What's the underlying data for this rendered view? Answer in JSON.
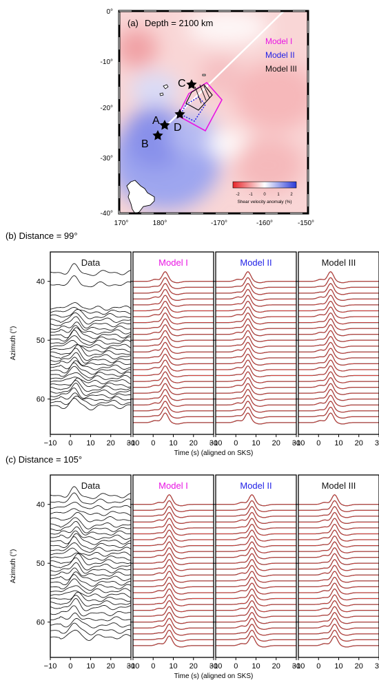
{
  "panel_a": {
    "label": "(a)",
    "title": "Depth = 2100 km",
    "legend": [
      {
        "text": "Model I",
        "color": "#e815e3"
      },
      {
        "text": "Model II",
        "color": "#1f1fe6"
      },
      {
        "text": "Model III",
        "color": "#111111"
      }
    ],
    "x_ticks": [
      "170°",
      "180°",
      "-170°",
      "-160°",
      "-150°"
    ],
    "y_ticks": [
      "0°",
      "-10°",
      "-20°",
      "-30°",
      "-40°"
    ],
    "stations": [
      "A",
      "B",
      "C",
      "D"
    ],
    "colorbar": {
      "ticks": [
        "-2",
        "-1",
        "0",
        "1",
        "2"
      ],
      "label": "Shear velocity anomaly (%)",
      "min_color": "#e8262b",
      "max_color": "#2a3ad8"
    }
  },
  "panel_b": {
    "label": "(b) Distance = 99°"
  },
  "panel_c": {
    "label": "(c) Distance = 105°"
  },
  "common": {
    "ylabel": "Azimuth (°)",
    "xlabel": "Time (s) (aligned on SKS)",
    "x_ticks": [
      "−10",
      "0",
      "10",
      "20",
      "30"
    ],
    "y_ticks": [
      "40",
      "50",
      "60"
    ],
    "titles": [
      {
        "text": "Data",
        "color": "#111111"
      },
      {
        "text": "Model I",
        "color": "#e815e3"
      },
      {
        "text": "Model II",
        "color": "#1f1fe6"
      },
      {
        "text": "Model III",
        "color": "#111111"
      }
    ]
  },
  "chart_data": [
    {
      "type": "line",
      "name": "Distance = 99°",
      "x_range": [
        -10,
        30
      ],
      "y_range": [
        35,
        66
      ],
      "data_azimuths": [
        38.5,
        40.5,
        44.5,
        45.2,
        45.9,
        46.6,
        47.3,
        48.0,
        48.6,
        49.2,
        49.8,
        50.4,
        51.0,
        51.6,
        52.2,
        52.8,
        53.4,
        54.0,
        54.6,
        55.2,
        55.8,
        56.4,
        57.0,
        57.6,
        58.2,
        58.8,
        59.4,
        60.0,
        60.6,
        61.2
      ],
      "synthetic_azimuths": [
        40,
        41,
        42,
        43,
        44,
        45,
        46,
        47,
        48,
        49,
        50,
        51,
        52,
        53,
        54,
        55,
        56,
        57,
        58,
        59,
        60,
        61,
        62,
        63,
        64
      ],
      "peak_time_s": 6
    },
    {
      "type": "line",
      "name": "Distance = 105°",
      "x_range": [
        -10,
        30
      ],
      "y_range": [
        35,
        66
      ],
      "data_azimuths": [
        38.5,
        39.5,
        40.5,
        41.5,
        42.5,
        43.5,
        44.2,
        44.9,
        45.6,
        46.3,
        47.0,
        47.7,
        48.4,
        49.1,
        49.8,
        50.5,
        51.2,
        51.9,
        52.6,
        53.3,
        54.0,
        54.7,
        55.4,
        56.1,
        56.8,
        57.5,
        58.5,
        59.5,
        60.5,
        61.5,
        62.5
      ],
      "synthetic_azimuths": [
        40,
        41,
        42,
        43,
        44,
        45,
        46,
        47,
        48,
        49,
        50,
        51,
        52,
        53,
        54,
        55,
        56,
        57,
        58,
        59,
        60,
        61,
        62,
        63,
        64
      ],
      "peak_time_s": 8
    }
  ]
}
